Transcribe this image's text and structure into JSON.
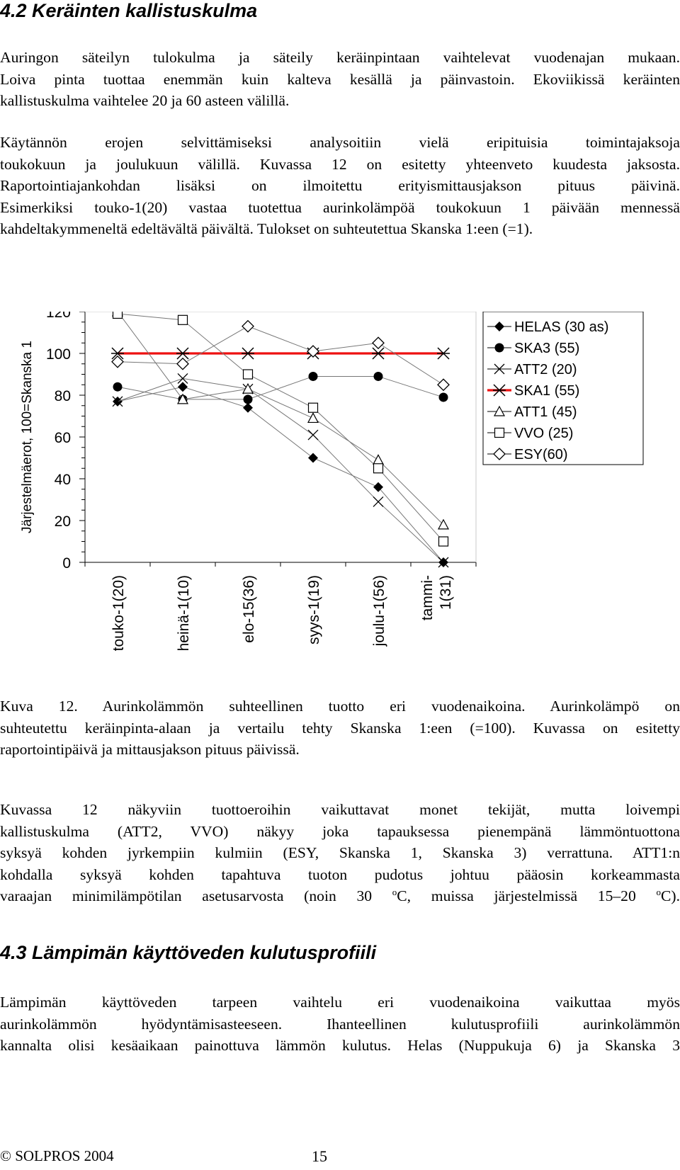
{
  "section_42": {
    "title": "4.2 Keräinten kallistuskulma",
    "p1": [
      "Auringon säteilyn tulokulma ja säteily keräinpintaan vaihtelevat vuodenajan mukaan.",
      "Loiva pinta tuottaa enemmän kuin kalteva kesällä ja päinvastoin. Ekoviikissä keräinten",
      "kallistuskulma vaihtelee 20 ja 60 asteen välillä."
    ],
    "p2": [
      "Käytännön erojen selvittämiseksi analysoitiin vielä eripituisia toimintajaksoja",
      "toukokuun ja joulukuun välillä. Kuvassa 12 on esitetty yhteenveto kuudesta jaksosta.",
      "Raportointiajankohdan lisäksi on ilmoitettu erityismittausjakson pituus päivinä.",
      "Esimerkiksi touko-1(20) vastaa tuotettua aurinkolämpöä toukokuun 1 päivään mennessä",
      "kahdeltakymmeneltä edeltävältä päivältä. Tulokset on suhteutettua Skanska 1:een (=1)."
    ]
  },
  "chart_data": {
    "type": "line",
    "ylabel": "Järjestelmäerot, 100=Skanska 1",
    "ylim": [
      0,
      120
    ],
    "yticks": [
      "0",
      "20",
      "40",
      "60",
      "80",
      "100",
      "120"
    ],
    "categories": [
      "touko-1(20)",
      "heinä-1(10)",
      "elo-15(36)",
      "syys-1(19)",
      "joulu-1(56)",
      "tammi-1(31)"
    ],
    "category_lines": [
      [
        "touko-1(20)"
      ],
      [
        "heinä-1(10)"
      ],
      [
        "elo-15(36)"
      ],
      [
        "syys-1(19)"
      ],
      [
        "joulu-1(56)"
      ],
      [
        "tammi-",
        "1(31)"
      ]
    ],
    "legend_position": "right",
    "grid": false,
    "series": [
      {
        "name": "HELAS (30 as)",
        "marker": "diamond-filled",
        "values": [
          77,
          84,
          74,
          50,
          36,
          0
        ]
      },
      {
        "name": "SKA3 (55)",
        "marker": "circle-filled",
        "values": [
          84,
          78,
          78,
          89,
          89,
          79
        ]
      },
      {
        "name": "ATT2 (20)",
        "marker": "x",
        "values": [
          77,
          88,
          83,
          61,
          29,
          0
        ]
      },
      {
        "name": "SKA1 (55)",
        "marker": "star",
        "values": [
          100,
          100,
          100,
          100,
          100,
          100
        ],
        "color": "#ee1111"
      },
      {
        "name": "ATT1 (45)",
        "marker": "triangle-open",
        "values": [
          120,
          78,
          83,
          69,
          49,
          18
        ]
      },
      {
        "name": "VVO (25)",
        "marker": "square-open",
        "values": [
          119,
          116,
          90,
          74,
          45,
          10
        ]
      },
      {
        "name": "ESY(60)",
        "marker": "diamond-open",
        "values": [
          96,
          95,
          113,
          101,
          105,
          85
        ]
      }
    ]
  },
  "caption": [
    "Kuva 12. Aurinkolämmön suhteellinen tuotto eri vuodenaikoina. Aurinkolämpö on",
    "suhteutettu keräinpinta-alaan ja vertailu tehty Skanska 1:een (=100). Kuvassa on esitetty",
    "raportointipäivä ja mittausjakson pituus päivissä."
  ],
  "p3": [
    "Kuvassa 12 näkyviin tuottoeroihin vaikuttavat monet tekijät, mutta loivempi",
    "kallistuskulma (ATT2, VVO) näkyy joka tapauksessa pienempänä lämmöntuottona",
    "syksyä kohden jyrkempiin kulmiin (ESY, Skanska 1, Skanska 3) verrattuna. ATT1:n",
    "kohdalla syksyä kohden tapahtuva tuoton pudotus johtuu pääosin korkeammasta"
  ],
  "p3_last": {
    "before": "varaajan minimilämpötilan asetusarvosta (noin 30 ",
    "sup1": "o",
    "middle": "C, muissa järjestelmissä 15–20 ",
    "sup2": "o",
    "after": "C)."
  },
  "section_43": {
    "title": "4.3 Lämpimän käyttöveden kulutusprofiili",
    "p": [
      "Lämpimän käyttöveden tarpeen vaihtelu eri vuodenaikoina vaikuttaa myös",
      "aurinkolämmön hyödyntämisasteeseen. Ihanteellinen kulutusprofiili aurinkolämmön",
      "kannalta olisi kesäaikaan painottuva lämmön kulutus. Helas (Nuppukuja 6) ja Skanska 3"
    ]
  },
  "footer": {
    "copyright": "© SOLPROS 2004",
    "page_number": "15"
  }
}
